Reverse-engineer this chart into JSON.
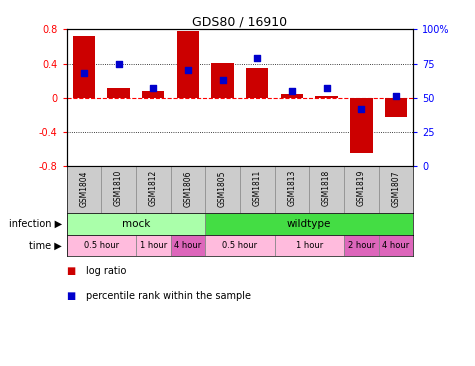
{
  "title": "GDS80 / 16910",
  "samples": [
    "GSM1804",
    "GSM1810",
    "GSM1812",
    "GSM1806",
    "GSM1805",
    "GSM1811",
    "GSM1813",
    "GSM1818",
    "GSM1819",
    "GSM1807"
  ],
  "log_ratio": [
    0.72,
    0.12,
    0.08,
    0.78,
    0.41,
    0.35,
    0.04,
    0.02,
    -0.65,
    -0.22
  ],
  "percentile": [
    68,
    75,
    57,
    70,
    63,
    79,
    55,
    57,
    42,
    51
  ],
  "ylim": [
    -0.8,
    0.8
  ],
  "yticks_left": [
    -0.8,
    -0.4,
    0.0,
    0.4,
    0.8
  ],
  "yticks_right": [
    0,
    25,
    50,
    75,
    100
  ],
  "bar_color": "#cc0000",
  "dot_color": "#0000cc",
  "bg_color": "#ffffff",
  "sample_bg": "#cccccc",
  "infection_groups": [
    {
      "label": "mock",
      "start": 0,
      "end": 4,
      "color": "#aaffaa"
    },
    {
      "label": "wildtype",
      "start": 4,
      "end": 10,
      "color": "#44dd44"
    }
  ],
  "time_groups": [
    {
      "label": "0.5 hour",
      "start": 0,
      "end": 2,
      "color": "#ffbbdd"
    },
    {
      "label": "1 hour",
      "start": 2,
      "end": 3,
      "color": "#ffbbdd"
    },
    {
      "label": "4 hour",
      "start": 3,
      "end": 4,
      "color": "#dd66bb"
    },
    {
      "label": "0.5 hour",
      "start": 4,
      "end": 6,
      "color": "#ffbbdd"
    },
    {
      "label": "1 hour",
      "start": 6,
      "end": 8,
      "color": "#ffbbdd"
    },
    {
      "label": "2 hour",
      "start": 8,
      "end": 9,
      "color": "#dd66bb"
    },
    {
      "label": "4 hour",
      "start": 9,
      "end": 10,
      "color": "#dd66bb"
    }
  ],
  "legend_bar_label": "log ratio",
  "legend_dot_label": "percentile rank within the sample",
  "infection_label": "infection",
  "time_label": "time"
}
